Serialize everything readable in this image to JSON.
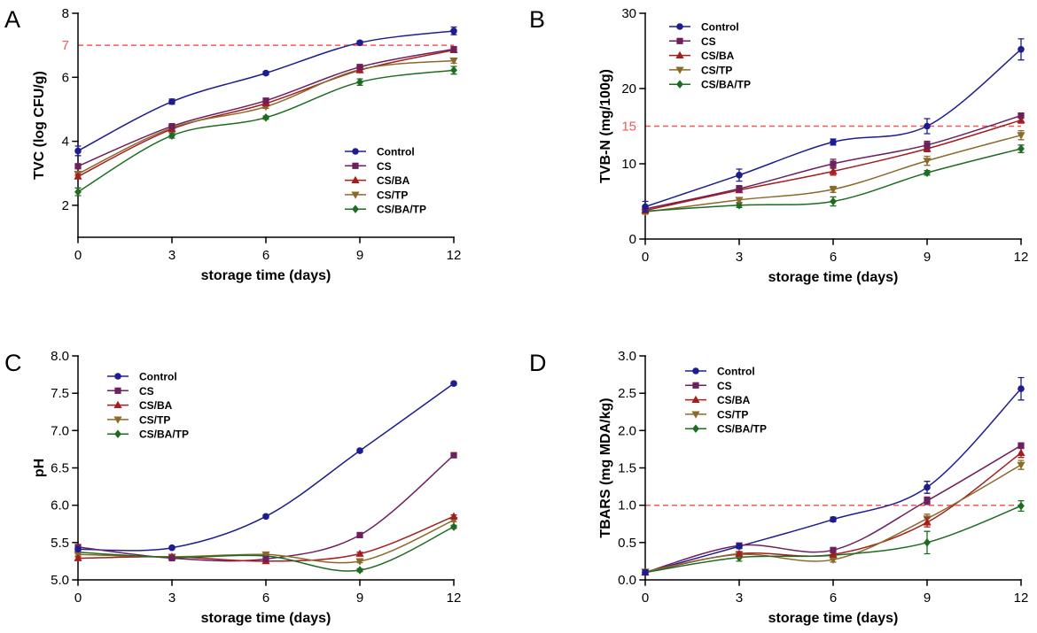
{
  "chart_data": [
    {
      "panel": "A",
      "type": "line",
      "xlabel": "storage time (days)",
      "ylabel": "TVC (log CFU/g)",
      "x": [
        0,
        3,
        6,
        9,
        12
      ],
      "xlim": [
        0,
        12
      ],
      "x_ticks": [
        0,
        3,
        6,
        9,
        12
      ],
      "x_tick_labels": [
        "0",
        "3",
        "6",
        "9",
        "12"
      ],
      "ylim": [
        1,
        8
      ],
      "y_ticks": [
        2,
        4,
        6,
        8
      ],
      "y_tick_labels": [
        "2",
        "4",
        "6",
        "8"
      ],
      "grid": false,
      "threshold": {
        "value": 7,
        "label": "7",
        "color": "#f05a5a",
        "style": "dashed"
      },
      "legend": "bottom-right",
      "series": [
        {
          "name": "Control",
          "marker": "circle",
          "color": "#1d1d8f",
          "values": [
            3.7,
            5.24,
            6.13,
            7.08,
            7.45
          ],
          "errors": [
            0.15,
            0.08,
            0.05,
            0.05,
            0.12
          ]
        },
        {
          "name": "CS",
          "marker": "square",
          "color": "#6e1f5e",
          "values": [
            3.22,
            4.47,
            5.27,
            6.32,
            6.88
          ],
          "errors": [
            0.06,
            0.05,
            0.05,
            0.05,
            0.08
          ]
        },
        {
          "name": "CS/BA",
          "marker": "triangle-up",
          "color": "#a51d1d",
          "values": [
            2.9,
            4.38,
            5.18,
            6.22,
            6.85
          ],
          "errors": [
            0.06,
            0.05,
            0.05,
            0.05,
            0.06
          ]
        },
        {
          "name": "CS/TP",
          "marker": "triangle-down",
          "color": "#8a6a2b",
          "values": [
            2.98,
            4.42,
            5.08,
            6.24,
            6.52
          ],
          "errors": [
            0.06,
            0.05,
            0.05,
            0.05,
            0.08
          ]
        },
        {
          "name": "CS/BA/TP",
          "marker": "diamond",
          "color": "#1e6b22",
          "values": [
            2.42,
            4.18,
            4.74,
            5.85,
            6.22
          ],
          "errors": [
            0.12,
            0.08,
            0.05,
            0.1,
            0.12
          ]
        }
      ]
    },
    {
      "panel": "B",
      "type": "line",
      "xlabel": "storage time (days)",
      "ylabel": "TVB-N (mg/100g)",
      "x": [
        0,
        3,
        6,
        9,
        12
      ],
      "xlim": [
        0,
        12
      ],
      "x_ticks": [
        0,
        3,
        6,
        9,
        12
      ],
      "x_tick_labels": [
        "0",
        "3",
        "6",
        "9",
        "12"
      ],
      "ylim": [
        0,
        30
      ],
      "y_ticks": [
        0,
        10,
        20,
        30
      ],
      "y_tick_labels": [
        "0",
        "10",
        "20",
        "30"
      ],
      "grid": false,
      "threshold": {
        "value": 15,
        "label": "15",
        "color": "#f05a5a",
        "style": "dashed"
      },
      "legend": "top-left",
      "series": [
        {
          "name": "Control",
          "marker": "circle",
          "color": "#1d1d8f",
          "values": [
            4.3,
            8.5,
            12.9,
            15.0,
            25.2
          ],
          "errors": [
            0.7,
            0.8,
            0.4,
            1.0,
            1.4
          ]
        },
        {
          "name": "CS",
          "marker": "square",
          "color": "#6e1f5e",
          "values": [
            4.0,
            6.7,
            10.0,
            12.5,
            16.4
          ],
          "errors": [
            0.3,
            0.4,
            0.6,
            0.5,
            0.3
          ]
        },
        {
          "name": "CS/BA",
          "marker": "triangle-up",
          "color": "#a51d1d",
          "values": [
            3.8,
            6.5,
            9.0,
            12.0,
            15.8
          ],
          "errors": [
            0.3,
            0.3,
            0.5,
            0.4,
            0.4
          ]
        },
        {
          "name": "CS/TP",
          "marker": "triangle-down",
          "color": "#8a6a2b",
          "values": [
            3.6,
            5.2,
            6.6,
            10.4,
            13.8
          ],
          "errors": [
            0.3,
            0.3,
            0.4,
            0.6,
            0.6
          ]
        },
        {
          "name": "CS/BA/TP",
          "marker": "diamond",
          "color": "#1e6b22",
          "values": [
            3.7,
            4.5,
            5.0,
            8.8,
            12.0
          ],
          "errors": [
            0.3,
            0.3,
            0.6,
            0.3,
            0.5
          ]
        }
      ]
    },
    {
      "panel": "C",
      "type": "line",
      "xlabel": "storage time (days)",
      "ylabel": "pH",
      "x": [
        0,
        3,
        6,
        9,
        12
      ],
      "xlim": [
        0,
        12
      ],
      "x_ticks": [
        0,
        3,
        6,
        9,
        12
      ],
      "x_tick_labels": [
        "0",
        "3",
        "6",
        "9",
        "12"
      ],
      "ylim": [
        5.0,
        8.0
      ],
      "y_ticks": [
        5.0,
        5.5,
        6.0,
        6.5,
        7.0,
        7.5,
        8.0
      ],
      "y_tick_labels": [
        "5.0",
        "5.5",
        "6.0",
        "6.5",
        "7.0",
        "7.5",
        "8.0"
      ],
      "grid": false,
      "legend": "top-left",
      "series": [
        {
          "name": "Control",
          "marker": "circle",
          "color": "#1d1d8f",
          "values": [
            5.41,
            5.43,
            5.85,
            6.73,
            7.63
          ],
          "errors": [
            0.02,
            0.02,
            0.02,
            0.02,
            0.02
          ]
        },
        {
          "name": "CS",
          "marker": "square",
          "color": "#6e1f5e",
          "values": [
            5.44,
            5.29,
            5.28,
            5.6,
            6.67
          ],
          "errors": [
            0.02,
            0.02,
            0.02,
            0.02,
            0.02
          ]
        },
        {
          "name": "CS/BA",
          "marker": "triangle-up",
          "color": "#a51d1d",
          "values": [
            5.29,
            5.31,
            5.25,
            5.35,
            5.85
          ],
          "errors": [
            0.02,
            0.02,
            0.02,
            0.02,
            0.02
          ]
        },
        {
          "name": "CS/TP",
          "marker": "triangle-down",
          "color": "#8a6a2b",
          "values": [
            5.34,
            5.31,
            5.34,
            5.25,
            5.8
          ],
          "errors": [
            0.02,
            0.02,
            0.02,
            0.02,
            0.02
          ]
        },
        {
          "name": "CS/BA/TP",
          "marker": "diamond",
          "color": "#1e6b22",
          "values": [
            5.37,
            5.3,
            5.32,
            5.13,
            5.71
          ],
          "errors": [
            0.02,
            0.02,
            0.02,
            0.02,
            0.02
          ]
        }
      ]
    },
    {
      "panel": "D",
      "type": "line",
      "xlabel": "storage time (days)",
      "ylabel": "TBARS (mg MDA/kg)",
      "x": [
        0,
        3,
        6,
        9,
        12
      ],
      "xlim": [
        0,
        12
      ],
      "x_ticks": [
        0,
        3,
        6,
        9,
        12
      ],
      "x_tick_labels": [
        "0",
        "3",
        "6",
        "9",
        "12"
      ],
      "ylim": [
        0.0,
        3.0
      ],
      "y_ticks": [
        0.0,
        0.5,
        1.0,
        1.5,
        2.0,
        2.5,
        3.0
      ],
      "y_tick_labels": [
        "0.0",
        "0.5",
        "1.0",
        "1.5",
        "2.0",
        "2.5",
        "3.0"
      ],
      "grid": false,
      "threshold": {
        "value": 1.0,
        "color": "#f05a5a",
        "style": "dashed"
      },
      "legend": "top-left",
      "series": [
        {
          "name": "Control",
          "marker": "circle",
          "color": "#1d1d8f",
          "values": [
            0.1,
            0.45,
            0.81,
            1.24,
            2.56
          ],
          "errors": [
            0.02,
            0.03,
            0.03,
            0.08,
            0.15
          ]
        },
        {
          "name": "CS",
          "marker": "square",
          "color": "#6e1f5e",
          "values": [
            0.1,
            0.46,
            0.4,
            1.06,
            1.8
          ],
          "errors": [
            0.02,
            0.03,
            0.03,
            0.05,
            0.03
          ]
        },
        {
          "name": "CS/BA",
          "marker": "triangle-up",
          "color": "#a51d1d",
          "values": [
            0.1,
            0.35,
            0.34,
            0.77,
            1.7
          ],
          "errors": [
            0.02,
            0.03,
            0.03,
            0.06,
            0.06
          ]
        },
        {
          "name": "CS/TP",
          "marker": "triangle-down",
          "color": "#8a6a2b",
          "values": [
            0.11,
            0.34,
            0.27,
            0.82,
            1.54
          ],
          "errors": [
            0.02,
            0.03,
            0.03,
            0.06,
            0.06
          ]
        },
        {
          "name": "CS/BA/TP",
          "marker": "diamond",
          "color": "#1e6b22",
          "values": [
            0.1,
            0.3,
            0.33,
            0.5,
            0.99
          ],
          "errors": [
            0.02,
            0.05,
            0.05,
            0.15,
            0.07
          ]
        }
      ]
    }
  ]
}
